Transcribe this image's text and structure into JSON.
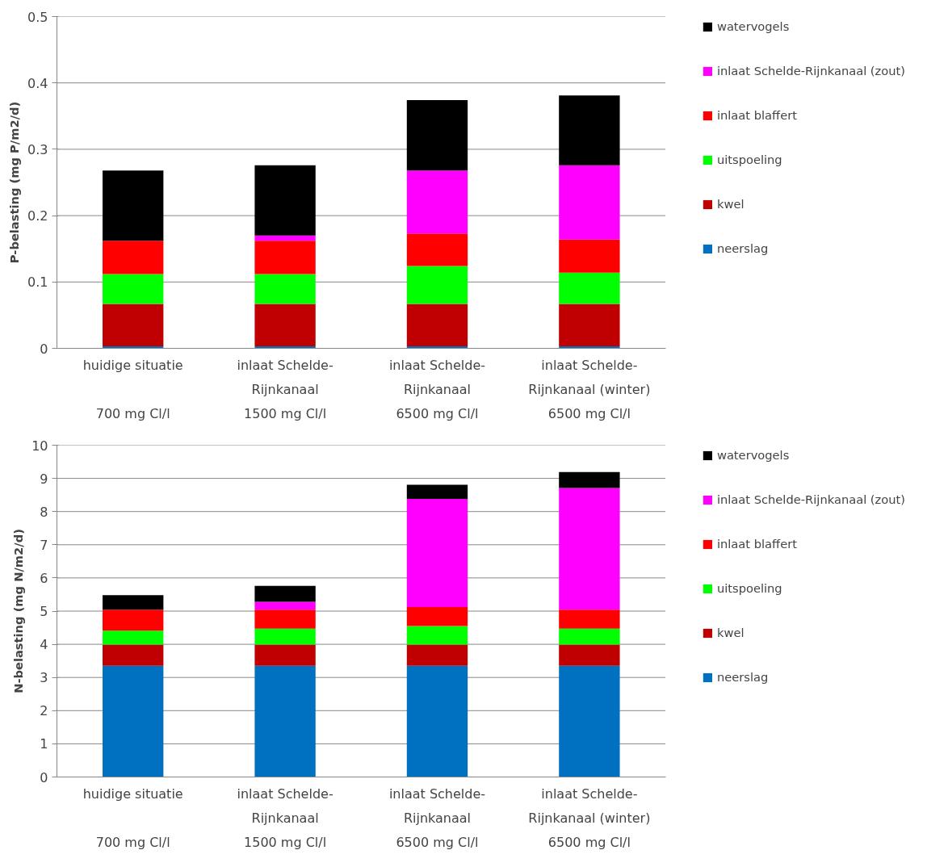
{
  "chart_data": [
    {
      "type": "bar",
      "stacked": true,
      "ylabel": "P-belasting (mg P/m2/d)",
      "categories": [
        "huidige situatie\n\n700 mg Cl/l",
        "inlaat Schelde-\nRijnkanaal\n1500 mg Cl/l",
        "inlaat Schelde-\nRijnkanaal\n6500 mg Cl/l",
        "inlaat Schelde-\nRijnkanaal (winter)\n6500 mg Cl/l"
      ],
      "ylim": [
        0,
        0.5
      ],
      "yticks": [
        0,
        0.1,
        0.2,
        0.3,
        0.4,
        0.5
      ],
      "grid": "y",
      "legend": "right",
      "series": [
        {
          "name": "neerslag",
          "color": "#0070c0",
          "values": [
            0.003,
            0.003,
            0.003,
            0.003
          ]
        },
        {
          "name": "kwel",
          "color": "#c00000",
          "values": [
            0.064,
            0.064,
            0.064,
            0.064
          ]
        },
        {
          "name": "uitspoeling",
          "color": "#00ff00",
          "values": [
            0.045,
            0.045,
            0.057,
            0.047
          ]
        },
        {
          "name": "inlaat blaffert",
          "color": "#ff0000",
          "values": [
            0.05,
            0.05,
            0.049,
            0.05
          ]
        },
        {
          "name": "inlaat Schelde-Rijnkanaal (zout)",
          "color": "#ff00ff",
          "values": [
            0,
            0.008,
            0.095,
            0.112
          ]
        },
        {
          "name": "watervogels",
          "color": "#000000",
          "values": [
            0.106,
            0.106,
            0.106,
            0.105
          ]
        }
      ]
    },
    {
      "type": "bar",
      "stacked": true,
      "ylabel": "N-belasting (mg N/m2/d)",
      "categories": [
        "huidige situatie\n\n700 mg Cl/l",
        "inlaat Schelde-\nRijnkanaal\n1500 mg Cl/l",
        "inlaat Schelde-\nRijnkanaal\n6500 mg Cl/l",
        "inlaat Schelde-\nRijnkanaal (winter)\n6500 mg Cl/l"
      ],
      "ylim": [
        0,
        10
      ],
      "yticks": [
        0,
        1,
        2,
        3,
        4,
        5,
        6,
        7,
        8,
        9,
        10
      ],
      "grid": "y",
      "legend": "right",
      "series": [
        {
          "name": "neerslag",
          "color": "#0070c0",
          "values": [
            3.35,
            3.35,
            3.35,
            3.35
          ]
        },
        {
          "name": "kwel",
          "color": "#c00000",
          "values": [
            0.64,
            0.64,
            0.64,
            0.64
          ]
        },
        {
          "name": "uitspoeling",
          "color": "#00ff00",
          "values": [
            0.42,
            0.48,
            0.56,
            0.48
          ]
        },
        {
          "name": "inlaat blaffert",
          "color": "#ff0000",
          "values": [
            0.63,
            0.57,
            0.57,
            0.57
          ]
        },
        {
          "name": "inlaat Schelde-Rijnkanaal (zout)",
          "color": "#ff00ff",
          "values": [
            0,
            0.24,
            3.26,
            3.67
          ]
        },
        {
          "name": "watervogels",
          "color": "#000000",
          "values": [
            0.44,
            0.48,
            0.43,
            0.48
          ]
        }
      ]
    }
  ]
}
